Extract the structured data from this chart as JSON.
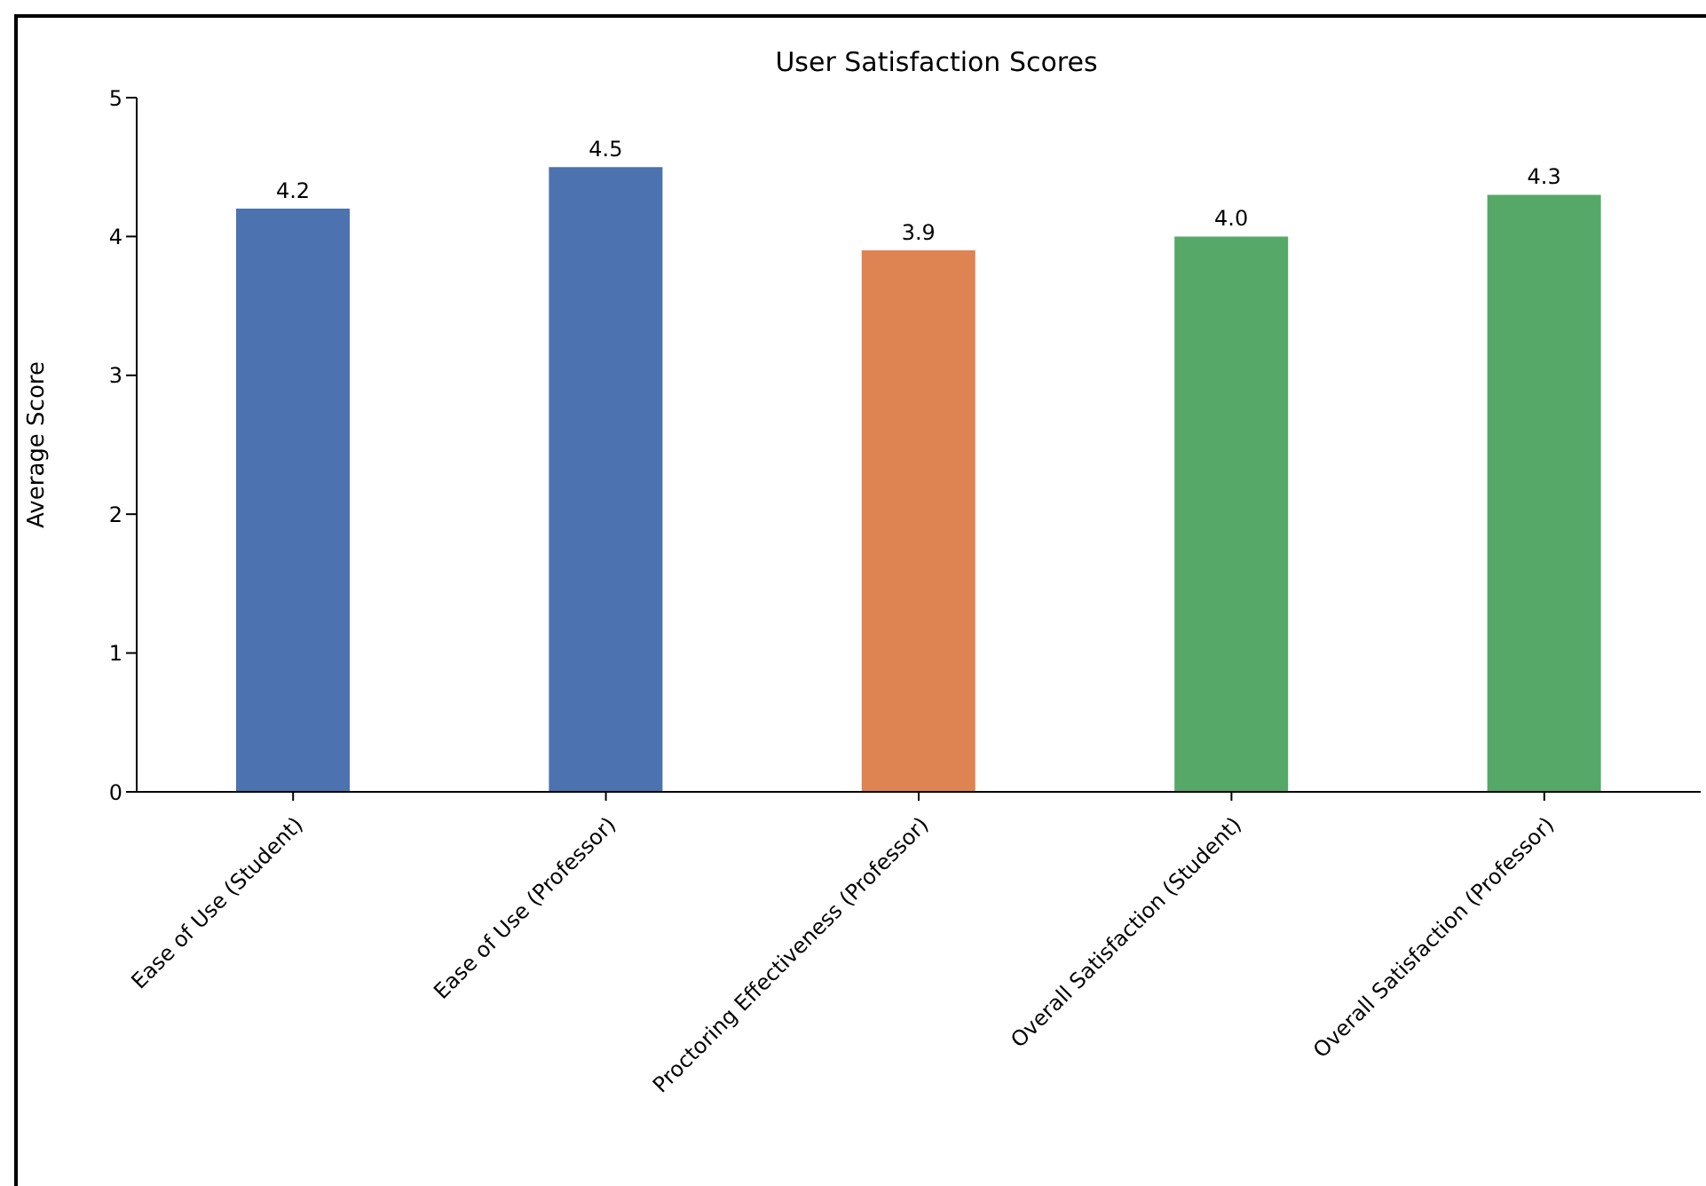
{
  "chart_data": {
    "type": "bar",
    "title": "User Satisfaction Scores",
    "ylabel": "Average Score",
    "categories": [
      "Ease of Use (Student)",
      "Ease of Use (Professor)",
      "Proctoring Effectiveness (Professor)",
      "Overall Satisfaction (Student)",
      "Overall Satisfaction (Professor)"
    ],
    "values": [
      4.2,
      4.5,
      3.9,
      4.0,
      4.3
    ],
    "colors": [
      "#4c72b0",
      "#4c72b0",
      "#dd8452",
      "#55a868",
      "#55a868"
    ],
    "value_labels": [
      "4.2",
      "4.5",
      "3.9",
      "4.0",
      "4.3"
    ],
    "ylim": [
      0,
      5
    ],
    "yticks": [
      0,
      1,
      2,
      3,
      4,
      5
    ]
  }
}
